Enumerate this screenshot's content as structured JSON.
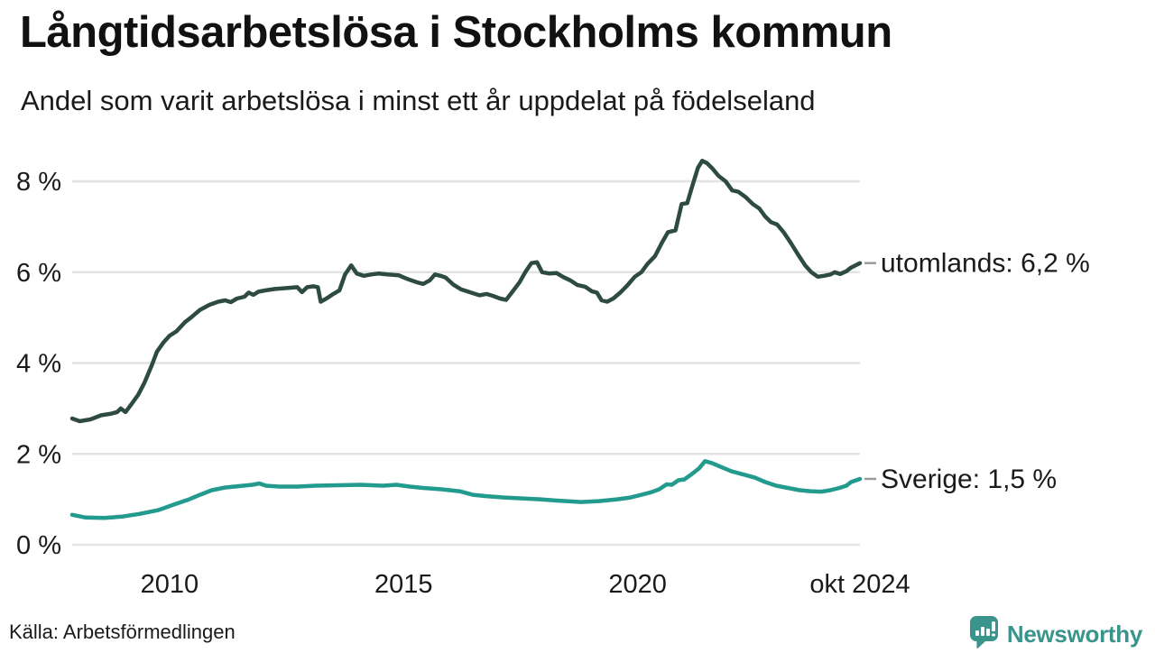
{
  "header": {
    "title": "Långtidsarbetslösa i Stockholms kommun",
    "subtitle": "Andel som varit arbetslösa i minst ett år uppdelat på födelseland"
  },
  "footer": {
    "source": "Källa: Arbetsförmedlingen",
    "brand": "Newsworthy"
  },
  "colors": {
    "series_utomlands": "#2d4b41",
    "series_sverige": "#229a8d",
    "brand_teal": "#3a948c",
    "gridline": "#e3e3e3",
    "text": "#1a1a1a",
    "connector": "#9a9a9a"
  },
  "chart_data": {
    "type": "line",
    "title": "Långtidsarbetslösa i Stockholms kommun",
    "subtitle": "Andel som varit arbetslösa i minst ett år uppdelat på födelseland",
    "ylabel": "",
    "xlabel": "",
    "ylim": [
      0,
      8
    ],
    "ytick_values": [
      0,
      2,
      4,
      6,
      8
    ],
    "ytick_suffix": " %",
    "xlim": [
      2007.92,
      2024.75
    ],
    "xticks": [
      {
        "t": 2010,
        "label": "2010"
      },
      {
        "t": 2015,
        "label": "2015"
      },
      {
        "t": 2020,
        "label": "2020"
      },
      {
        "t": 2024.75,
        "label": "okt 2024"
      }
    ],
    "grid": "horizontal-only",
    "legend_position": "end-of-line-labels",
    "series": [
      {
        "name": "utomlands",
        "color": "#2d4b41",
        "end_label": "utomlands: 6,2 %",
        "end_value": "6,2 %",
        "points": [
          [
            2007.92,
            2.78
          ],
          [
            2008.08,
            2.72
          ],
          [
            2008.31,
            2.76
          ],
          [
            2008.54,
            2.85
          ],
          [
            2008.73,
            2.88
          ],
          [
            2008.88,
            2.92
          ],
          [
            2008.96,
            3.0
          ],
          [
            2009.06,
            2.92
          ],
          [
            2009.19,
            3.1
          ],
          [
            2009.33,
            3.3
          ],
          [
            2009.46,
            3.56
          ],
          [
            2009.62,
            3.95
          ],
          [
            2009.73,
            4.25
          ],
          [
            2009.87,
            4.45
          ],
          [
            2010.0,
            4.6
          ],
          [
            2010.15,
            4.7
          ],
          [
            2010.33,
            4.9
          ],
          [
            2010.48,
            5.02
          ],
          [
            2010.65,
            5.17
          ],
          [
            2010.85,
            5.28
          ],
          [
            2011.04,
            5.35
          ],
          [
            2011.19,
            5.38
          ],
          [
            2011.31,
            5.34
          ],
          [
            2011.44,
            5.42
          ],
          [
            2011.6,
            5.46
          ],
          [
            2011.69,
            5.55
          ],
          [
            2011.79,
            5.5
          ],
          [
            2011.9,
            5.57
          ],
          [
            2012.06,
            5.6
          ],
          [
            2012.25,
            5.63
          ],
          [
            2012.5,
            5.65
          ],
          [
            2012.73,
            5.67
          ],
          [
            2012.83,
            5.56
          ],
          [
            2012.94,
            5.67
          ],
          [
            2013.08,
            5.69
          ],
          [
            2013.17,
            5.67
          ],
          [
            2013.23,
            5.35
          ],
          [
            2013.35,
            5.42
          ],
          [
            2013.5,
            5.52
          ],
          [
            2013.63,
            5.6
          ],
          [
            2013.75,
            5.95
          ],
          [
            2013.88,
            6.15
          ],
          [
            2014.0,
            5.97
          ],
          [
            2014.15,
            5.92
          ],
          [
            2014.31,
            5.95
          ],
          [
            2014.46,
            5.97
          ],
          [
            2014.65,
            5.95
          ],
          [
            2014.9,
            5.93
          ],
          [
            2015.08,
            5.85
          ],
          [
            2015.27,
            5.78
          ],
          [
            2015.42,
            5.74
          ],
          [
            2015.56,
            5.82
          ],
          [
            2015.67,
            5.95
          ],
          [
            2015.79,
            5.92
          ],
          [
            2015.9,
            5.88
          ],
          [
            2016.06,
            5.73
          ],
          [
            2016.23,
            5.62
          ],
          [
            2016.44,
            5.55
          ],
          [
            2016.62,
            5.49
          ],
          [
            2016.77,
            5.52
          ],
          [
            2016.9,
            5.48
          ],
          [
            2017.06,
            5.42
          ],
          [
            2017.19,
            5.39
          ],
          [
            2017.35,
            5.6
          ],
          [
            2017.48,
            5.78
          ],
          [
            2017.6,
            6.0
          ],
          [
            2017.73,
            6.2
          ],
          [
            2017.85,
            6.22
          ],
          [
            2017.96,
            6.0
          ],
          [
            2018.12,
            5.97
          ],
          [
            2018.27,
            5.98
          ],
          [
            2018.4,
            5.9
          ],
          [
            2018.56,
            5.82
          ],
          [
            2018.71,
            5.72
          ],
          [
            2018.88,
            5.68
          ],
          [
            2019.02,
            5.58
          ],
          [
            2019.13,
            5.55
          ],
          [
            2019.23,
            5.38
          ],
          [
            2019.35,
            5.35
          ],
          [
            2019.48,
            5.42
          ],
          [
            2019.63,
            5.55
          ],
          [
            2019.79,
            5.72
          ],
          [
            2019.94,
            5.9
          ],
          [
            2020.08,
            6.0
          ],
          [
            2020.21,
            6.18
          ],
          [
            2020.37,
            6.35
          ],
          [
            2020.52,
            6.65
          ],
          [
            2020.65,
            6.88
          ],
          [
            2020.81,
            6.92
          ],
          [
            2020.94,
            7.5
          ],
          [
            2021.06,
            7.52
          ],
          [
            2021.17,
            7.9
          ],
          [
            2021.29,
            8.3
          ],
          [
            2021.38,
            8.45
          ],
          [
            2021.48,
            8.4
          ],
          [
            2021.6,
            8.28
          ],
          [
            2021.73,
            8.12
          ],
          [
            2021.88,
            8.0
          ],
          [
            2022.02,
            7.8
          ],
          [
            2022.15,
            7.77
          ],
          [
            2022.31,
            7.65
          ],
          [
            2022.46,
            7.5
          ],
          [
            2022.6,
            7.4
          ],
          [
            2022.73,
            7.22
          ],
          [
            2022.85,
            7.1
          ],
          [
            2022.98,
            7.05
          ],
          [
            2023.12,
            6.88
          ],
          [
            2023.27,
            6.65
          ],
          [
            2023.42,
            6.4
          ],
          [
            2023.58,
            6.15
          ],
          [
            2023.71,
            6.0
          ],
          [
            2023.85,
            5.9
          ],
          [
            2023.98,
            5.92
          ],
          [
            2024.12,
            5.95
          ],
          [
            2024.21,
            6.0
          ],
          [
            2024.33,
            5.96
          ],
          [
            2024.46,
            6.02
          ],
          [
            2024.56,
            6.1
          ],
          [
            2024.75,
            6.2
          ]
        ]
      },
      {
        "name": "Sverige",
        "color": "#229a8d",
        "end_label": "Sverige: 1,5 %",
        "end_value": "1,5 %",
        "points": [
          [
            2007.92,
            0.66
          ],
          [
            2008.21,
            0.6
          ],
          [
            2008.6,
            0.59
          ],
          [
            2008.98,
            0.62
          ],
          [
            2009.37,
            0.68
          ],
          [
            2009.75,
            0.76
          ],
          [
            2010.13,
            0.9
          ],
          [
            2010.42,
            1.0
          ],
          [
            2010.65,
            1.1
          ],
          [
            2010.9,
            1.2
          ],
          [
            2011.19,
            1.26
          ],
          [
            2011.48,
            1.29
          ],
          [
            2011.77,
            1.32
          ],
          [
            2011.92,
            1.35
          ],
          [
            2012.06,
            1.3
          ],
          [
            2012.35,
            1.28
          ],
          [
            2012.73,
            1.28
          ],
          [
            2013.12,
            1.3
          ],
          [
            2013.6,
            1.31
          ],
          [
            2014.08,
            1.32
          ],
          [
            2014.56,
            1.3
          ],
          [
            2014.85,
            1.32
          ],
          [
            2015.13,
            1.28
          ],
          [
            2015.42,
            1.25
          ],
          [
            2015.81,
            1.22
          ],
          [
            2016.19,
            1.18
          ],
          [
            2016.48,
            1.1
          ],
          [
            2016.77,
            1.07
          ],
          [
            2017.15,
            1.04
          ],
          [
            2017.54,
            1.02
          ],
          [
            2017.92,
            1.0
          ],
          [
            2018.31,
            0.97
          ],
          [
            2018.79,
            0.94
          ],
          [
            2019.17,
            0.96
          ],
          [
            2019.56,
            1.0
          ],
          [
            2019.85,
            1.04
          ],
          [
            2020.08,
            1.1
          ],
          [
            2020.27,
            1.15
          ],
          [
            2020.46,
            1.22
          ],
          [
            2020.62,
            1.33
          ],
          [
            2020.73,
            1.32
          ],
          [
            2020.87,
            1.42
          ],
          [
            2021.0,
            1.44
          ],
          [
            2021.15,
            1.55
          ],
          [
            2021.31,
            1.68
          ],
          [
            2021.44,
            1.84
          ],
          [
            2021.58,
            1.8
          ],
          [
            2021.77,
            1.72
          ],
          [
            2022.0,
            1.62
          ],
          [
            2022.25,
            1.55
          ],
          [
            2022.5,
            1.48
          ],
          [
            2022.73,
            1.38
          ],
          [
            2022.96,
            1.3
          ],
          [
            2023.21,
            1.25
          ],
          [
            2023.46,
            1.2
          ],
          [
            2023.69,
            1.18
          ],
          [
            2023.92,
            1.17
          ],
          [
            2024.12,
            1.2
          ],
          [
            2024.31,
            1.25
          ],
          [
            2024.46,
            1.3
          ],
          [
            2024.56,
            1.38
          ],
          [
            2024.75,
            1.45
          ]
        ]
      }
    ]
  }
}
